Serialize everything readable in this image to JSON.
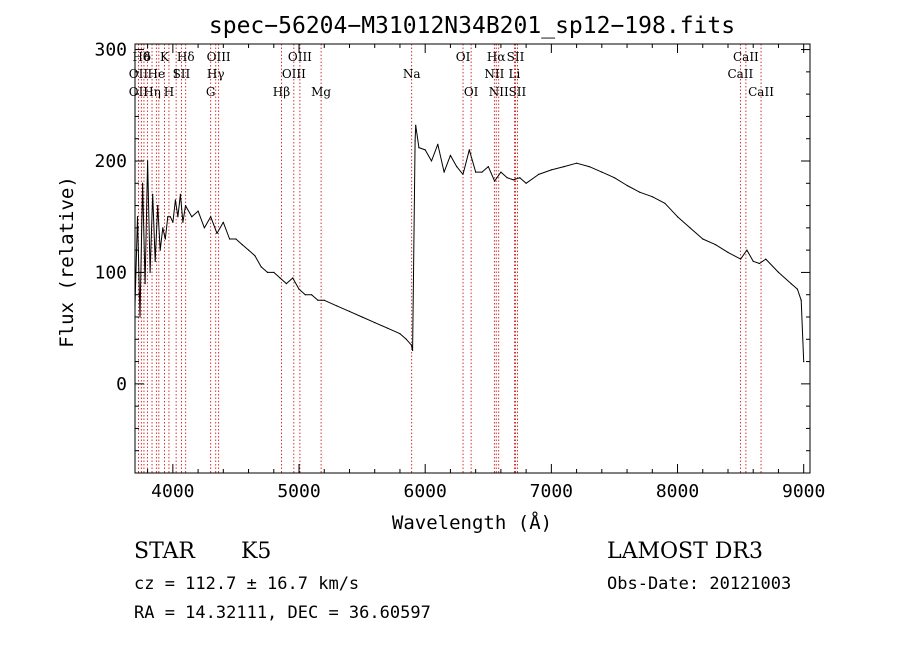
{
  "chart_data": {
    "type": "line",
    "title": "spec−56204−M31012N34B201_sp12−198.fits",
    "xlabel": "Wavelength (Å)",
    "ylabel": "Flux (relative)",
    "xlim": [
      3700,
      9050
    ],
    "ylim": [
      -80,
      305
    ],
    "xticks": [
      4000,
      5000,
      6000,
      7000,
      8000,
      9000
    ],
    "yticks": [
      0,
      100,
      200,
      300
    ],
    "grid": false,
    "series": [
      {
        "name": "flux",
        "color": "#000000",
        "x": [
          3700,
          3720,
          3740,
          3760,
          3780,
          3800,
          3820,
          3840,
          3860,
          3880,
          3900,
          3920,
          3940,
          3960,
          3980,
          4000,
          4020,
          4040,
          4060,
          4080,
          4100,
          4150,
          4200,
          4250,
          4300,
          4350,
          4400,
          4450,
          4500,
          4550,
          4600,
          4650,
          4700,
          4750,
          4800,
          4850,
          4900,
          4950,
          5000,
          5050,
          5100,
          5150,
          5200,
          5300,
          5400,
          5500,
          5600,
          5700,
          5800,
          5850,
          5890,
          5900,
          5920,
          5925,
          5950,
          6000,
          6050,
          6100,
          6150,
          6200,
          6250,
          6300,
          6350,
          6400,
          6450,
          6500,
          6550,
          6600,
          6650,
          6700,
          6750,
          6800,
          6900,
          7000,
          7100,
          7200,
          7300,
          7400,
          7500,
          7600,
          7700,
          7800,
          7900,
          8000,
          8100,
          8200,
          8300,
          8400,
          8500,
          8550,
          8600,
          8650,
          8700,
          8800,
          8900,
          8950,
          8980,
          9000
        ],
        "values": [
          70,
          150,
          60,
          180,
          90,
          200,
          100,
          170,
          110,
          160,
          120,
          140,
          130,
          150,
          150,
          145,
          165,
          150,
          170,
          145,
          160,
          150,
          155,
          140,
          150,
          135,
          145,
          130,
          130,
          125,
          120,
          115,
          105,
          100,
          100,
          95,
          90,
          95,
          85,
          80,
          80,
          75,
          75,
          70,
          65,
          60,
          55,
          50,
          45,
          40,
          35,
          30,
          218,
          232,
          212,
          210,
          200,
          215,
          190,
          205,
          195,
          188,
          210,
          190,
          190,
          195,
          182,
          190,
          185,
          183,
          185,
          180,
          188,
          192,
          195,
          198,
          195,
          190,
          185,
          178,
          172,
          168,
          162,
          150,
          140,
          130,
          125,
          118,
          112,
          120,
          110,
          108,
          112,
          100,
          90,
          85,
          75,
          20
        ]
      }
    ],
    "lines": [
      {
        "wave": 3727,
        "labels": [
          {
            "text": "OII",
            "row": 1
          },
          {
            "text": "OII",
            "row": 2
          }
        ]
      },
      {
        "wave": 3750,
        "labels": [
          {
            "text": "Hθ",
            "row": 0
          }
        ]
      },
      {
        "wave": 3771,
        "labels": [
          {
            "text": "",
            "row": 0
          }
        ]
      },
      {
        "wave": 3798,
        "labels": [
          {
            "text": "δ",
            "row": 0
          }
        ]
      },
      {
        "wave": 3835,
        "labels": [
          {
            "text": "Hη",
            "row": 2
          }
        ]
      },
      {
        "wave": 3869,
        "labels": [
          {
            "text": "He",
            "row": 1
          }
        ]
      },
      {
        "wave": 3889,
        "labels": [
          {
            "text": "",
            "row": 1
          }
        ]
      },
      {
        "wave": 3934,
        "labels": [
          {
            "text": "K",
            "row": 0
          }
        ]
      },
      {
        "wave": 3969,
        "labels": [
          {
            "text": "H",
            "row": 2
          }
        ]
      },
      {
        "wave": 4026,
        "labels": [
          {
            "text": "I",
            "row": 1
          }
        ]
      },
      {
        "wave": 4068,
        "labels": [
          {
            "text": "SII",
            "row": 1
          }
        ]
      },
      {
        "wave": 4102,
        "labels": [
          {
            "text": "Hδ",
            "row": 0
          }
        ]
      },
      {
        "wave": 4300,
        "labels": [
          {
            "text": "G",
            "row": 2
          }
        ]
      },
      {
        "wave": 4340,
        "labels": [
          {
            "text": "Hγ",
            "row": 1
          }
        ]
      },
      {
        "wave": 4363,
        "labels": [
          {
            "text": "OIII",
            "row": 0
          }
        ]
      },
      {
        "wave": 4861,
        "labels": [
          {
            "text": "Hβ",
            "row": 2
          }
        ]
      },
      {
        "wave": 4959,
        "labels": [
          {
            "text": "OIII",
            "row": 1
          }
        ]
      },
      {
        "wave": 5007,
        "labels": [
          {
            "text": "OIII",
            "row": 0
          }
        ]
      },
      {
        "wave": 5175,
        "labels": [
          {
            "text": "Mg",
            "row": 2
          }
        ]
      },
      {
        "wave": 5893,
        "labels": [
          {
            "text": "Na",
            "row": 1
          }
        ]
      },
      {
        "wave": 6300,
        "labels": [
          {
            "text": "OI",
            "row": 0
          }
        ]
      },
      {
        "wave": 6364,
        "labels": [
          {
            "text": "OI",
            "row": 2
          }
        ]
      },
      {
        "wave": 6548,
        "labels": [
          {
            "text": "NII",
            "row": 1
          }
        ]
      },
      {
        "wave": 6563,
        "labels": [
          {
            "text": "Hα",
            "row": 0
          }
        ]
      },
      {
        "wave": 6583,
        "labels": [
          {
            "text": "NII",
            "row": 2
          }
        ]
      },
      {
        "wave": 6707,
        "labels": [
          {
            "text": "Li",
            "row": 1
          }
        ]
      },
      {
        "wave": 6716,
        "labels": [
          {
            "text": "SII",
            "row": 0
          }
        ]
      },
      {
        "wave": 6731,
        "labels": [
          {
            "text": "SII",
            "row": 2
          }
        ]
      },
      {
        "wave": 8498,
        "labels": [
          {
            "text": "CaII",
            "row": 1
          }
        ]
      },
      {
        "wave": 8542,
        "labels": [
          {
            "text": "CaII",
            "row": 0
          }
        ]
      },
      {
        "wave": 8662,
        "labels": [
          {
            "text": "CaII",
            "row": 2
          }
        ]
      }
    ]
  },
  "info": {
    "class": "STAR",
    "subclass": "K5",
    "survey": "LAMOST DR3",
    "cz": "cz = 112.7 ± 16.7 km/s",
    "obs_date": "Obs-Date: 20121003",
    "coords": "RA =  14.32111, DEC =  36.60597"
  },
  "colors": {
    "line_markers": "#cc0000",
    "spectrum": "#000000"
  }
}
